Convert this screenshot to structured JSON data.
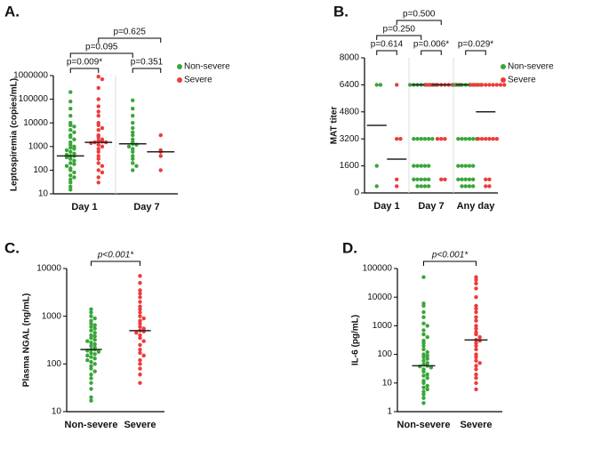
{
  "chart_data": [
    {
      "type": "dot",
      "label": "A.",
      "ylabel": "Leptospiremia (copies/mL)",
      "log": true,
      "legend": "right",
      "categories": [
        "Day 1",
        "Day 7"
      ],
      "ylim": [
        10,
        1000000
      ],
      "yticks": [
        10,
        100,
        1000,
        10000,
        100000,
        1000000
      ],
      "series": [
        {
          "name": "Non-severe",
          "color": "#3aa63a",
          "values": [
            [
              200000,
              80000,
              40000,
              20000,
              10000,
              8000,
              7000,
              5000,
              4000,
              3000,
              2500,
              2000,
              1500,
              1200,
              1000,
              900,
              800,
              700,
              600,
              500,
              450,
              400,
              400,
              350,
              300,
              250,
              200,
              180,
              150,
              120,
              100,
              80,
              60,
              50,
              40,
              30,
              20,
              15
            ],
            [
              90000,
              40000,
              20000,
              10000,
              6000,
              4000,
              3000,
              2000,
              1500,
              1300,
              1200,
              1000,
              800,
              600,
              400,
              300,
              200,
              150,
              100
            ]
          ],
          "medians": [
            400,
            1300
          ]
        },
        {
          "name": "Severe",
          "color": "#ee3b3b",
          "values": [
            [
              900000,
              700000,
              300000,
              100000,
              50000,
              30000,
              20000,
              10000,
              8000,
              6000,
              5000,
              3000,
              2500,
              2000,
              1800,
              1600,
              1500,
              1500,
              1400,
              1200,
              1000,
              800,
              600,
              400,
              300,
              200,
              150,
              100,
              80,
              50,
              30
            ],
            [
              3000,
              700,
              600,
              400,
              100
            ]
          ],
          "medians": [
            1500,
            600
          ]
        }
      ],
      "comparisons": [
        {
          "text": "p=0.009*",
          "from": 0,
          "to": 1
        },
        {
          "text": "p=0.351",
          "from": 2,
          "to": 3
        },
        {
          "text": "p=0.095",
          "from": 0,
          "to": 2
        },
        {
          "text": "p=0.625",
          "from": 1,
          "to": 3
        }
      ]
    },
    {
      "type": "dot",
      "label": "B.",
      "ylabel": "MAT titer",
      "log": false,
      "legend": "right",
      "categories": [
        "Day 1",
        "Day 7",
        "Any day"
      ],
      "ylim": [
        0,
        8000
      ],
      "yticks": [
        0,
        1600,
        3200,
        4800,
        6400,
        8000
      ],
      "series": [
        {
          "name": "Non-severe",
          "color": "#3aa63a",
          "values": [
            [
              6400,
              6400,
              1600,
              400
            ],
            [
              6400,
              6400,
              6400,
              6400,
              6400,
              6400,
              6400,
              6400,
              3200,
              3200,
              3200,
              3200,
              3200,
              3200,
              1600,
              1600,
              1600,
              1600,
              1600,
              800,
              800,
              800,
              800,
              800,
              400,
              400,
              400,
              400
            ],
            [
              6400,
              6400,
              6400,
              6400,
              6400,
              6400,
              6400,
              6400,
              3200,
              3200,
              3200,
              3200,
              3200,
              3200,
              1600,
              1600,
              1600,
              1600,
              1600,
              800,
              800,
              800,
              800,
              800,
              400,
              400,
              400,
              400
            ]
          ],
          "medians": [
            4000,
            6400,
            6400
          ]
        },
        {
          "name": "Severe",
          "color": "#ee3b3b",
          "values": [
            [
              6400,
              3200,
              3200,
              800,
              400
            ],
            [
              6400,
              6400,
              6400,
              6400,
              6400,
              6400,
              6400,
              6400,
              6400,
              6400,
              3200,
              3200,
              3200,
              800,
              800
            ],
            [
              6400,
              6400,
              6400,
              6400,
              6400,
              6400,
              6400,
              6400,
              6400,
              6400,
              3200,
              3200,
              3200,
              3200,
              3200,
              3200,
              800,
              800,
              400,
              400
            ]
          ],
          "medians": [
            2000,
            6400,
            4800
          ]
        }
      ],
      "comparisons": [
        {
          "text": "p=0.614",
          "from": 0,
          "to": 1
        },
        {
          "text": "p=0.006*",
          "from": 2,
          "to": 3
        },
        {
          "text": "p=0.029*",
          "from": 4,
          "to": 5
        },
        {
          "text": "p=0.250",
          "from": 0,
          "to": 2
        },
        {
          "text": "p=0.500",
          "from": 1,
          "to": 3
        }
      ]
    },
    {
      "type": "dot",
      "label": "C.",
      "ylabel": "Plasma NGAL (ng/mL)",
      "log": true,
      "categories": [
        "Non-severe",
        "Severe"
      ],
      "colors": [
        "#3aa63a",
        "#ee3b3b"
      ],
      "ylim": [
        10,
        10000
      ],
      "yticks": [
        10,
        100,
        1000,
        10000
      ],
      "values": [
        [
          1400,
          1200,
          1000,
          900,
          800,
          700,
          650,
          600,
          550,
          500,
          450,
          400,
          380,
          350,
          320,
          300,
          280,
          260,
          240,
          220,
          200,
          200,
          190,
          180,
          170,
          160,
          150,
          140,
          130,
          120,
          110,
          100,
          90,
          80,
          70,
          60,
          50,
          40,
          30,
          20,
          17
        ],
        [
          7000,
          5000,
          3500,
          3000,
          2500,
          2000,
          1600,
          1400,
          1200,
          1000,
          900,
          800,
          700,
          600,
          550,
          500,
          480,
          450,
          400,
          350,
          300,
          250,
          200,
          170,
          150,
          120,
          100,
          80,
          60,
          40
        ]
      ],
      "medians": [
        200,
        500
      ],
      "comparisons": [
        {
          "text": "p<0.001*",
          "from": 0,
          "to": 1
        }
      ]
    },
    {
      "type": "dot",
      "label": "D.",
      "ylabel": "IL-6 (pg/mL)",
      "log": true,
      "categories": [
        "Non-severe",
        "Severe"
      ],
      "colors": [
        "#3aa63a",
        "#ee3b3b"
      ],
      "ylim": [
        1,
        100000
      ],
      "yticks": [
        1,
        10,
        100,
        1000,
        10000,
        100000
      ],
      "values": [
        [
          50000,
          6000,
          5000,
          3000,
          2000,
          1200,
          1000,
          700,
          500,
          400,
          300,
          250,
          200,
          150,
          120,
          100,
          90,
          80,
          70,
          60,
          50,
          45,
          40,
          38,
          35,
          30,
          25,
          20,
          18,
          15,
          12,
          10,
          8,
          7,
          6,
          5,
          4,
          3,
          2
        ],
        [
          50000,
          40000,
          30000,
          20000,
          10000,
          5000,
          4000,
          3000,
          2000,
          1500,
          1000,
          800,
          600,
          500,
          400,
          320,
          300,
          250,
          200,
          150,
          100,
          80,
          60,
          50,
          40,
          30,
          20,
          15,
          10,
          6
        ]
      ],
      "medians": [
        40,
        320
      ],
      "comparisons": [
        {
          "text": "p<0.001*",
          "from": 0,
          "to": 1
        }
      ]
    }
  ]
}
